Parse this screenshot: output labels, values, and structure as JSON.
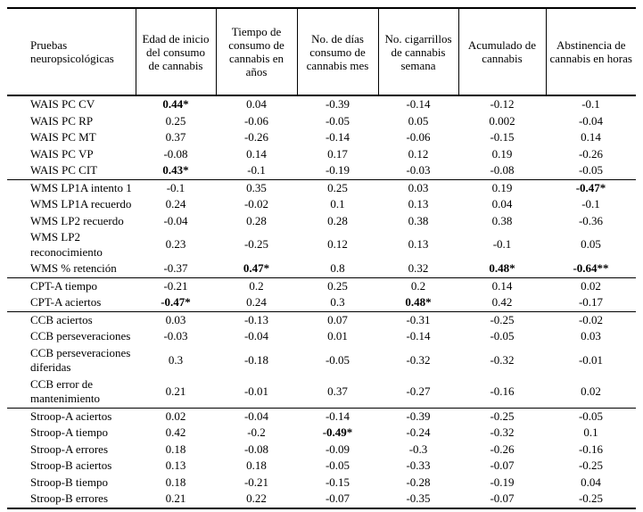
{
  "table": {
    "row_header": "Pruebas neuropsicológicas",
    "columns": [
      "Edad de inicio del consumo de cannabis",
      "Tiempo de consumo de cannabis en años",
      "No. de días consumo de cannabis mes",
      "No. cigarrillos de cannabis semana",
      "Acumulado de cannabis",
      "Abstinencia de cannabis en horas"
    ],
    "groups": [
      {
        "name": "WAIS",
        "rows": [
          {
            "label": "WAIS PC CV",
            "values": [
              "0.44*",
              "0.04",
              "-0.39",
              "-0.14",
              "-0.12",
              "-0.1"
            ],
            "bold": [
              0
            ]
          },
          {
            "label": "WAIS PC RP",
            "values": [
              "0.25",
              "-0.06",
              "-0.05",
              "0.05",
              "0.002",
              "-0.04"
            ],
            "bold": []
          },
          {
            "label": "WAIS PC MT",
            "values": [
              "0.37",
              "-0.26",
              "-0.14",
              "-0.06",
              "-0.15",
              "0.14"
            ],
            "bold": []
          },
          {
            "label": "WAIS PC VP",
            "values": [
              "-0.08",
              "0.14",
              "0.17",
              "0.12",
              "0.19",
              "-0.26"
            ],
            "bold": []
          },
          {
            "label": "WAIS PC CIT",
            "values": [
              "0.43*",
              "-0.1",
              "-0.19",
              "-0.03",
              "-0.08",
              "-0.05"
            ],
            "bold": [
              0
            ]
          }
        ]
      },
      {
        "name": "WMS",
        "rows": [
          {
            "label": "WMS LP1A intento 1",
            "values": [
              "-0.1",
              "0.35",
              "0.25",
              "0.03",
              "0.19",
              "-0.47*"
            ],
            "bold": [
              5
            ]
          },
          {
            "label": "WMS LP1A recuerdo",
            "values": [
              "0.24",
              "-0.02",
              "0.1",
              "0.13",
              "0.04",
              "-0.1"
            ],
            "bold": []
          },
          {
            "label": "WMS LP2 recuerdo",
            "values": [
              "-0.04",
              "0.28",
              "0.28",
              "0.38",
              "0.38",
              "-0.36"
            ],
            "bold": []
          },
          {
            "label": "WMS LP2 reconocimiento",
            "values": [
              "0.23",
              "-0.25",
              "0.12",
              "0.13",
              "-0.1",
              "0.05"
            ],
            "bold": []
          },
          {
            "label": "WMS % retención",
            "values": [
              "-0.37",
              "0.47*",
              "0.8",
              "0.32",
              "0.48*",
              "-0.64**"
            ],
            "bold": [
              1,
              4,
              5
            ]
          }
        ]
      },
      {
        "name": "CPT",
        "rows": [
          {
            "label": "CPT-A tiempo",
            "values": [
              "-0.21",
              "0.2",
              "0.25",
              "0.2",
              "0.14",
              "0.02"
            ],
            "bold": []
          },
          {
            "label": "CPT-A aciertos",
            "values": [
              "-0.47*",
              "0.24",
              "0.3",
              "0.48*",
              "0.42",
              "-0.17"
            ],
            "bold": [
              0,
              3
            ]
          }
        ]
      },
      {
        "name": "CCB",
        "rows": [
          {
            "label": "CCB aciertos",
            "values": [
              "0.03",
              "-0.13",
              "0.07",
              "-0.31",
              "-0.25",
              "-0.02"
            ],
            "bold": []
          },
          {
            "label": "CCB perseveraciones",
            "values": [
              "-0.03",
              "-0.04",
              "0.01",
              "-0.14",
              "-0.05",
              "0.03"
            ],
            "bold": []
          },
          {
            "label": "CCB perseveraciones diferidas",
            "values": [
              "0.3",
              "-0.18",
              "-0.05",
              "-0.32",
              "-0.32",
              "-0.01"
            ],
            "bold": []
          },
          {
            "label": "CCB error de mantenimiento",
            "values": [
              "0.21",
              "-0.01",
              "0.37",
              "-0.27",
              "-0.16",
              "0.02"
            ],
            "bold": []
          }
        ]
      },
      {
        "name": "Stroop",
        "rows": [
          {
            "label": "Stroop-A aciertos",
            "values": [
              "0.02",
              "-0.04",
              "-0.14",
              "-0.39",
              "-0.25",
              "-0.05"
            ],
            "bold": []
          },
          {
            "label": "Stroop-A tiempo",
            "values": [
              "0.42",
              "-0.2",
              "-0.49*",
              "-0.24",
              "-0.32",
              "0.1"
            ],
            "bold": [
              2
            ]
          },
          {
            "label": "Stroop-A errores",
            "values": [
              "0.18",
              "-0.08",
              "-0.09",
              "-0.3",
              "-0.26",
              "-0.16"
            ],
            "bold": []
          },
          {
            "label": "Stroop-B aciertos",
            "values": [
              "0.13",
              "0.18",
              "-0.05",
              "-0.33",
              "-0.07",
              "-0.25"
            ],
            "bold": []
          },
          {
            "label": "Stroop-B tiempo",
            "values": [
              "0.18",
              "-0.21",
              "-0.15",
              "-0.28",
              "-0.19",
              "0.04"
            ],
            "bold": []
          },
          {
            "label": "Stroop-B errores",
            "values": [
              "0.21",
              "0.22",
              "-0.07",
              "-0.35",
              "-0.07",
              "-0.25"
            ],
            "bold": []
          }
        ]
      }
    ]
  }
}
